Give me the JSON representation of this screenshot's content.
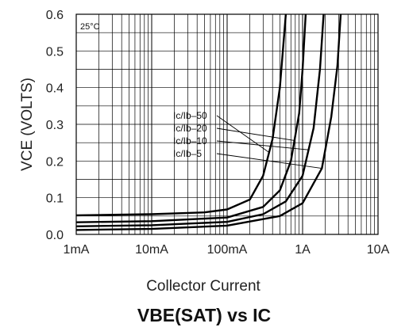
{
  "chart_data": {
    "type": "line",
    "title": "VBE(SAT) vs IC",
    "xlabel": "Collector Current",
    "ylabel": "VCE (VOLTS)",
    "condition": "25°C",
    "x_scale": "log",
    "xlim": [
      0.001,
      10
    ],
    "ylim": [
      0,
      0.6
    ],
    "grid": true,
    "x_ticks": [
      "1mA",
      "10mA",
      "100mA",
      "1A",
      "10A"
    ],
    "y_ticks": [
      "0.0",
      "0.1",
      "0.2",
      "0.3",
      "0.4",
      "0.5",
      "0.6"
    ],
    "series": [
      {
        "name": "IC/IB=50",
        "x": [
          0.001,
          0.01,
          0.05,
          0.1,
          0.2,
          0.3,
          0.4,
          0.5,
          0.6
        ],
        "y": [
          0.052,
          0.055,
          0.06,
          0.068,
          0.095,
          0.16,
          0.26,
          0.4,
          0.6
        ]
      },
      {
        "name": "IC/IB=20",
        "x": [
          0.001,
          0.01,
          0.1,
          0.3,
          0.5,
          0.7,
          0.9,
          1.0,
          1.1
        ],
        "y": [
          0.033,
          0.036,
          0.046,
          0.075,
          0.12,
          0.2,
          0.33,
          0.45,
          0.6
        ]
      },
      {
        "name": "IC/IB=10",
        "x": [
          0.001,
          0.01,
          0.1,
          0.3,
          0.6,
          1.0,
          1.4,
          1.7,
          1.9
        ],
        "y": [
          0.022,
          0.025,
          0.034,
          0.055,
          0.09,
          0.16,
          0.29,
          0.45,
          0.6
        ]
      },
      {
        "name": "IC/IB=5",
        "x": [
          0.001,
          0.01,
          0.1,
          0.5,
          1.0,
          1.8,
          2.4,
          2.9,
          3.2
        ],
        "y": [
          0.012,
          0.015,
          0.024,
          0.05,
          0.085,
          0.18,
          0.32,
          0.46,
          0.6
        ]
      }
    ],
    "annotations": [
      {
        "text": "Ic/Ib–50",
        "series": "IC/IB=50"
      },
      {
        "text": "Ic/Ib–20",
        "series": "IC/IB=20"
      },
      {
        "text": "Ic/Ib–10",
        "series": "IC/IB=10"
      },
      {
        "text": "Ic/Ib–5",
        "series": "IC/IB=5"
      }
    ]
  }
}
